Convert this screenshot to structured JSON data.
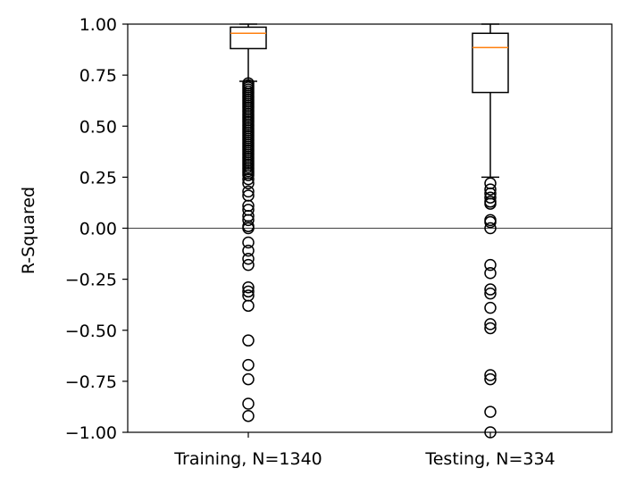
{
  "chart_data": {
    "type": "box",
    "title": "",
    "xlabel": "",
    "ylabel": "R-Squared",
    "ylim": [
      -1.0,
      1.0
    ],
    "yticks": [
      "1.00",
      "0.75",
      "0.50",
      "0.25",
      "0.00",
      "−0.25",
      "−0.50",
      "−0.75",
      "−1.00"
    ],
    "categories": [
      "Training, N=1340",
      "Testing, N=334"
    ],
    "reference_line_y": 0.0,
    "box_color": "#000000",
    "median_color": "#ff7f0e",
    "grid": false,
    "boxes": [
      {
        "label": "Training, N=1340",
        "q1": 0.88,
        "median": 0.955,
        "q3": 0.985,
        "whisker_low": 0.72,
        "whisker_high": 1.0,
        "outliers": [
          0.71,
          0.7,
          0.69,
          0.68,
          0.67,
          0.66,
          0.65,
          0.64,
          0.63,
          0.62,
          0.61,
          0.6,
          0.59,
          0.58,
          0.57,
          0.56,
          0.55,
          0.54,
          0.53,
          0.52,
          0.51,
          0.5,
          0.49,
          0.48,
          0.47,
          0.46,
          0.45,
          0.44,
          0.43,
          0.42,
          0.41,
          0.4,
          0.39,
          0.38,
          0.37,
          0.36,
          0.35,
          0.34,
          0.33,
          0.32,
          0.31,
          0.3,
          0.29,
          0.28,
          0.27,
          0.26,
          0.24,
          0.22,
          0.18,
          0.16,
          0.11,
          0.09,
          0.06,
          0.04,
          0.01,
          0.0,
          -0.07,
          -0.11,
          -0.15,
          -0.18,
          -0.29,
          -0.31,
          -0.33,
          -0.38,
          -0.55,
          -0.67,
          -0.74,
          -0.86,
          -0.92
        ]
      },
      {
        "label": "Testing, N=334",
        "q1": 0.665,
        "median": 0.885,
        "q3": 0.955,
        "whisker_low": 0.25,
        "whisker_high": 1.0,
        "outliers": [
          0.22,
          0.19,
          0.17,
          0.15,
          0.13,
          0.12,
          0.04,
          0.03,
          0.0,
          -0.18,
          -0.22,
          -0.3,
          -0.32,
          -0.39,
          -0.47,
          -0.49,
          -0.72,
          -0.74,
          -0.9,
          -1.0
        ]
      }
    ]
  }
}
